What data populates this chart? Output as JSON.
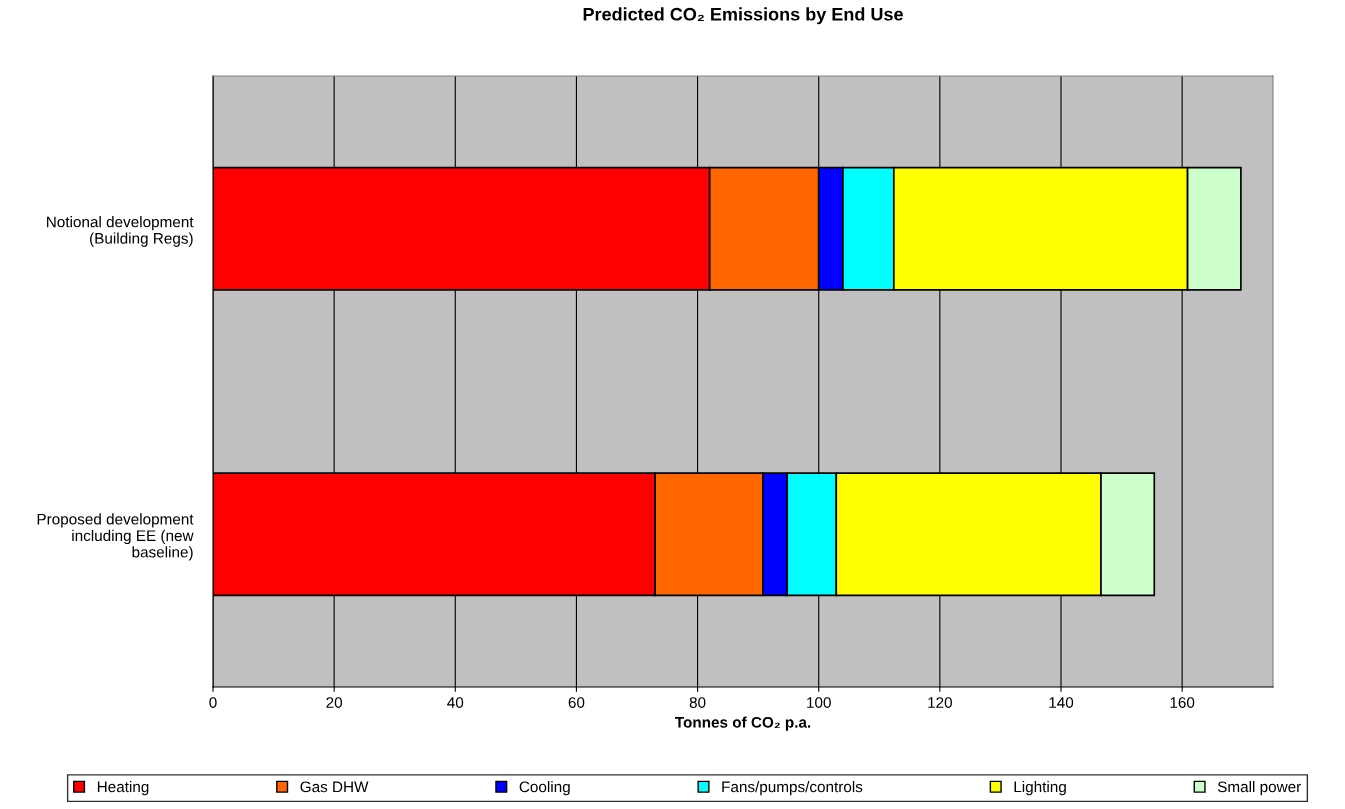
{
  "chart_data": {
    "type": "bar",
    "orientation": "horizontal",
    "stacked": true,
    "title": "Predicted CO₂ Emissions by End Use",
    "xlabel": "Tonnes of CO₂ p.a.",
    "categories": [
      "Notional development\n(Building Regs)",
      "Proposed development\nincluding EE (new\nbaseline)"
    ],
    "series": [
      {
        "name": "Heating",
        "color": "#ff0000",
        "values": [
          82,
          73
        ]
      },
      {
        "name": "Gas DHW",
        "color": "#ff6600",
        "values": [
          18,
          17.8
        ]
      },
      {
        "name": "Cooling",
        "color": "#0000ff",
        "values": [
          4,
          4
        ]
      },
      {
        "name": "Fans/pumps/controls",
        "color": "#00ffff",
        "values": [
          8.4,
          8.1
        ]
      },
      {
        "name": "Lighting",
        "color": "#ffff00",
        "values": [
          48.5,
          43.7
        ]
      },
      {
        "name": "Small power",
        "color": "#ccffcc",
        "values": [
          8.8,
          8.8
        ]
      }
    ],
    "xlim": [
      0,
      175
    ],
    "xticks": [
      0,
      20,
      40,
      60,
      80,
      100,
      120,
      140,
      160
    ],
    "grid": "x",
    "legend": "bottom"
  }
}
